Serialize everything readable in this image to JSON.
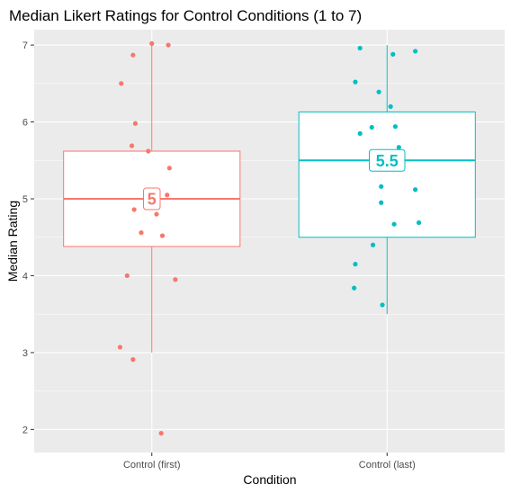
{
  "chart_data": {
    "type": "box",
    "title": "Median Likert Ratings for Control Conditions (1 to 7)",
    "xlabel": "Condition",
    "ylabel": "Median Rating",
    "ylim": [
      1.7,
      7.2
    ],
    "yticks": [
      "2",
      "3",
      "4",
      "5",
      "6",
      "7"
    ],
    "grid": true,
    "legend": "none",
    "categories": [
      "Control (first)",
      "Control (last)"
    ],
    "colors": [
      "#f8766d",
      "#00bfc4"
    ],
    "panel_bg": "#ebebeb",
    "boxes": [
      {
        "category": "Control (first)",
        "min": 3.0,
        "q1": 4.38,
        "median": 5.0,
        "q3": 5.62,
        "max": 7.0,
        "median_label": "5"
      },
      {
        "category": "Control (last)",
        "min": 3.5,
        "q1": 4.5,
        "median": 5.5,
        "q3": 6.13,
        "max": 7.0,
        "median_label": "5.5"
      }
    ],
    "points": [
      [
        {
          "jitter": 0.0,
          "y": 7.02
        },
        {
          "jitter": 0.14,
          "y": 7.0
        },
        {
          "jitter": -0.16,
          "y": 6.87
        },
        {
          "jitter": -0.26,
          "y": 6.5
        },
        {
          "jitter": -0.14,
          "y": 5.98
        },
        {
          "jitter": -0.17,
          "y": 5.69
        },
        {
          "jitter": -0.03,
          "y": 5.62
        },
        {
          "jitter": 0.15,
          "y": 5.4
        },
        {
          "jitter": 0.13,
          "y": 5.05
        },
        {
          "jitter": -0.15,
          "y": 4.86
        },
        {
          "jitter": 0.04,
          "y": 4.8
        },
        {
          "jitter": -0.09,
          "y": 4.56
        },
        {
          "jitter": 0.09,
          "y": 4.52
        },
        {
          "jitter": -0.21,
          "y": 4.0
        },
        {
          "jitter": 0.2,
          "y": 3.95
        },
        {
          "jitter": -0.27,
          "y": 3.07
        },
        {
          "jitter": -0.16,
          "y": 2.91
        },
        {
          "jitter": 0.08,
          "y": 1.95
        }
      ],
      [
        {
          "jitter": -0.23,
          "y": 6.96
        },
        {
          "jitter": 0.05,
          "y": 6.88
        },
        {
          "jitter": 0.24,
          "y": 6.92
        },
        {
          "jitter": -0.27,
          "y": 6.52
        },
        {
          "jitter": -0.07,
          "y": 6.39
        },
        {
          "jitter": 0.03,
          "y": 6.2
        },
        {
          "jitter": -0.13,
          "y": 5.93
        },
        {
          "jitter": -0.23,
          "y": 5.85
        },
        {
          "jitter": 0.07,
          "y": 5.94
        },
        {
          "jitter": 0.1,
          "y": 5.67
        },
        {
          "jitter": -0.05,
          "y": 5.16
        },
        {
          "jitter": 0.24,
          "y": 5.12
        },
        {
          "jitter": -0.05,
          "y": 4.95
        },
        {
          "jitter": 0.06,
          "y": 4.67
        },
        {
          "jitter": 0.27,
          "y": 4.69
        },
        {
          "jitter": -0.12,
          "y": 4.4
        },
        {
          "jitter": -0.27,
          "y": 4.15
        },
        {
          "jitter": -0.28,
          "y": 3.84
        },
        {
          "jitter": -0.04,
          "y": 3.62
        }
      ]
    ]
  }
}
